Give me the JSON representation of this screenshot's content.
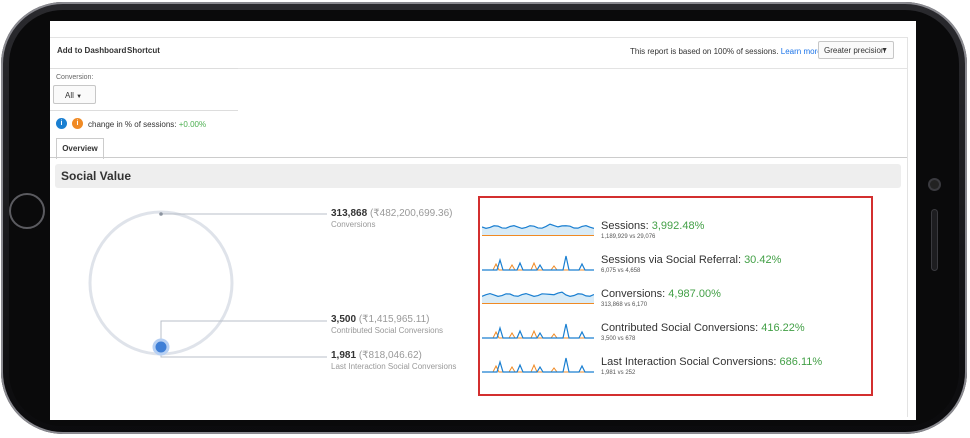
{
  "toolbar": {
    "add_to_dashboard": "Add to Dashboard",
    "shortcut": "Shortcut",
    "report_note": "This report is based on 100% of sessions.",
    "learn_more": "Learn more",
    "precision": "Greater precision"
  },
  "filter": {
    "label": "Conversion:",
    "value": "All"
  },
  "segments": {
    "change_prefix": "change in % of sessions:",
    "change_value": "+0.00%",
    "colors": [
      "#1a7fd1",
      "#f08a24"
    ]
  },
  "tabs": [
    {
      "label": "Overview"
    }
  ],
  "section": {
    "title": "Social Value"
  },
  "summary": [
    {
      "value": "313,868",
      "money": "(₹482,200,699.36)",
      "label": "Conversions"
    },
    {
      "value": "3,500",
      "money": "(₹1,415,965.11)",
      "label": "Contributed Social Conversions"
    },
    {
      "value": "1,981",
      "money": "(₹818,046.62)",
      "label": "Last Interaction Social Conversions"
    }
  ],
  "metrics": [
    {
      "label": "Sessions:",
      "value": "3,992.48%",
      "sub": "1,189,929 vs 29,076",
      "style": "area"
    },
    {
      "label": "Sessions via Social Referral:",
      "value": "30.42%",
      "sub": "6,075 vs 4,658",
      "style": "spiky"
    },
    {
      "label": "Conversions:",
      "value": "4,987.00%",
      "sub": "313,868 vs 6,170",
      "style": "area"
    },
    {
      "label": "Contributed Social Conversions:",
      "value": "416.22%",
      "sub": "3,500 vs 678",
      "style": "spiky"
    },
    {
      "label": "Last Interaction Social Conversions:",
      "value": "686.11%",
      "sub": "1,981 vs 252",
      "style": "spiky"
    }
  ],
  "accent_colors": {
    "blue": "#1a7fd1",
    "orange": "#f08a24",
    "green": "#43a047",
    "highlight": "#d32f2f"
  }
}
